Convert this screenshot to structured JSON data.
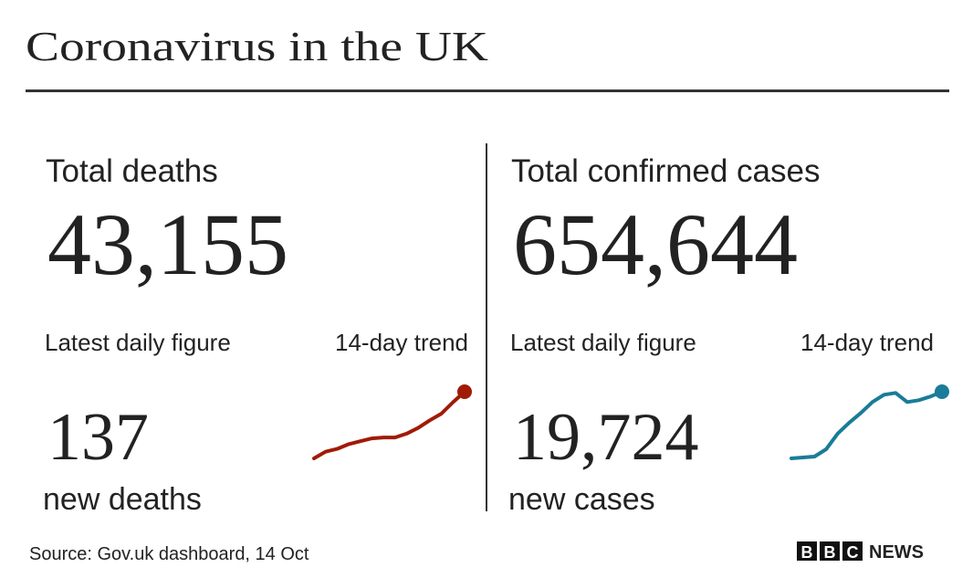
{
  "header": {
    "title": "Coronavirus in the UK"
  },
  "panels": [
    {
      "label": "Total deaths",
      "total": "43,155",
      "daily_label": "Latest daily figure",
      "trend_label": "14-day trend",
      "daily": "137",
      "daily_unit": "new deaths",
      "color": "#a01b06",
      "trend": [
        40,
        47,
        50,
        55,
        58,
        61,
        62,
        62,
        66,
        72,
        80,
        87,
        99,
        110
      ]
    },
    {
      "label": "Total confirmed cases",
      "total": "654,644",
      "daily_label": "Latest daily figure",
      "trend_label": "14-day trend",
      "daily": "19,724",
      "daily_unit": "new cases",
      "color": "#1a7c98",
      "trend": [
        6000,
        6150,
        6300,
        7500,
        10100,
        11900,
        13500,
        15300,
        16500,
        16800,
        15300,
        15600,
        16200,
        17000
      ]
    }
  ],
  "footer": {
    "source": "Source: Gov.uk dashboard, 14 Oct",
    "logo": [
      "B",
      "B",
      "C"
    ],
    "logo_suffix": "NEWS"
  }
}
